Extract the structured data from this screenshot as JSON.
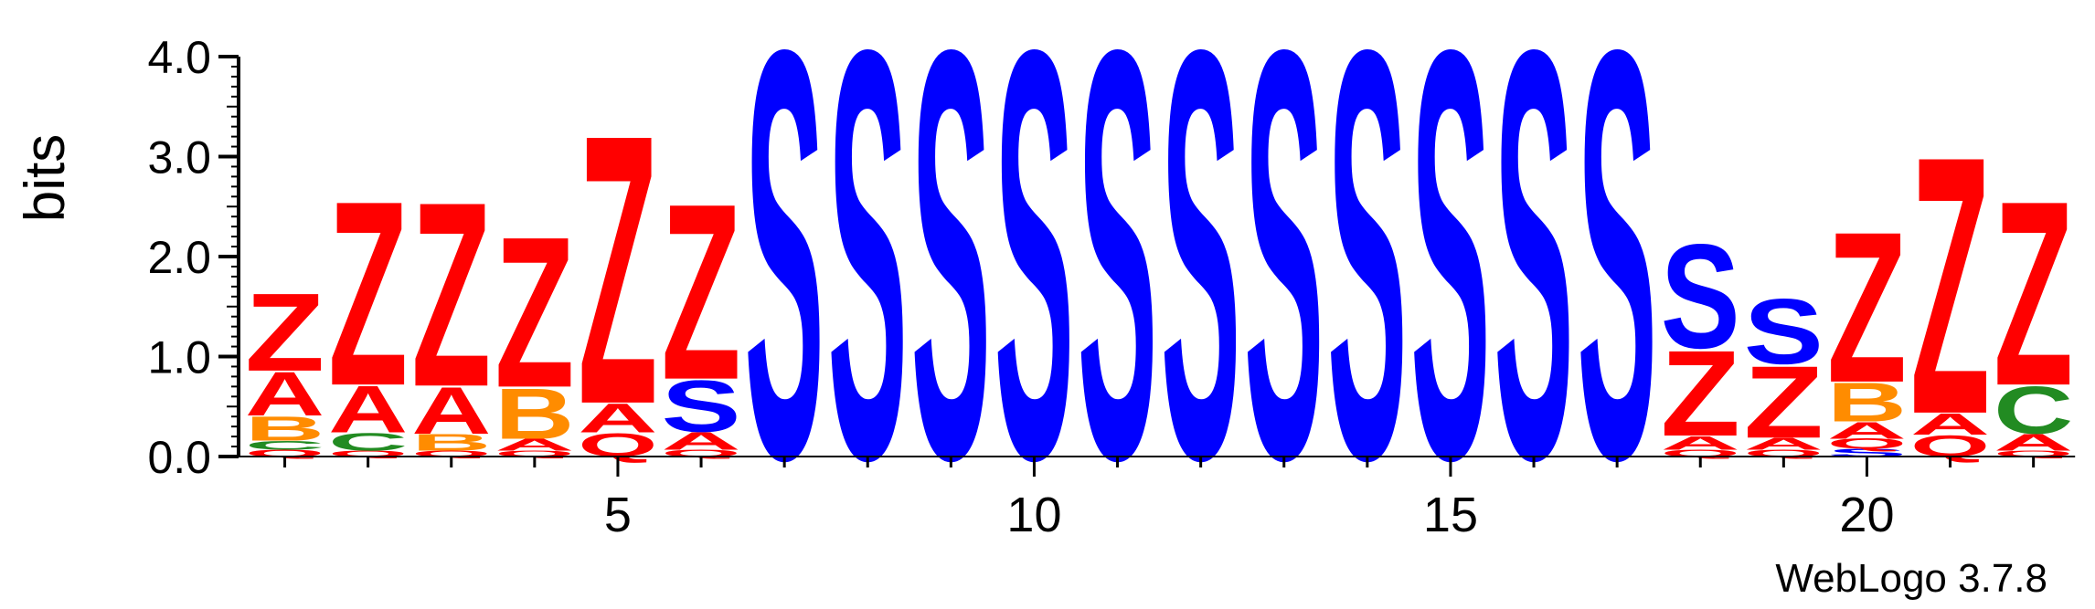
{
  "chart_data": {
    "type": "sequence-logo",
    "ylabel": "bits",
    "ylim": [
      0,
      4.0
    ],
    "y_ticks": [
      "0.0",
      "1.0",
      "2.0",
      "3.0",
      "4.0"
    ],
    "x_ticks": [
      5,
      10,
      15,
      20
    ],
    "positions": 22,
    "credit": "WebLogo 3.7.8",
    "colors": {
      "Z": "#ff0000",
      "A": "#ff0000",
      "Q": "#ff0000",
      "S": "#0000ff",
      "B": "#ff8c00",
      "C": "#228b22"
    },
    "columns": [
      [
        [
          "Q",
          0.07
        ],
        [
          "C",
          0.09
        ],
        [
          "B",
          0.25
        ],
        [
          "A",
          0.45
        ],
        [
          "Z",
          0.8
        ]
      ],
      [
        [
          "Q",
          0.06
        ],
        [
          "C",
          0.18
        ],
        [
          "A",
          0.48
        ],
        [
          "Z",
          1.9
        ]
      ],
      [
        [
          "Q",
          0.06
        ],
        [
          "B",
          0.17
        ],
        [
          "A",
          0.48
        ],
        [
          "Z",
          1.9
        ]
      ],
      [
        [
          "Q",
          0.06
        ],
        [
          "A",
          0.12
        ],
        [
          "B",
          0.52
        ],
        [
          "Z",
          1.55
        ]
      ],
      [
        [
          "Q",
          0.24
        ],
        [
          "A",
          0.3
        ],
        [
          "Z",
          2.77
        ]
      ],
      [
        [
          "Q",
          0.07
        ],
        [
          "A",
          0.18
        ],
        [
          "S",
          0.53
        ],
        [
          "Z",
          1.81
        ]
      ],
      [
        [
          "S",
          4.2
        ]
      ],
      [
        [
          "S",
          4.2
        ]
      ],
      [
        [
          "S",
          4.2
        ]
      ],
      [
        [
          "S",
          4.2
        ]
      ],
      [
        [
          "S",
          4.2
        ]
      ],
      [
        [
          "S",
          4.2
        ]
      ],
      [
        [
          "S",
          4.2
        ]
      ],
      [
        [
          "S",
          4.2
        ]
      ],
      [
        [
          "S",
          4.2
        ]
      ],
      [
        [
          "S",
          4.2
        ]
      ],
      [
        [
          "S",
          4.2
        ]
      ],
      [
        [
          "Q",
          0.07
        ],
        [
          "A",
          0.14
        ],
        [
          "Z",
          0.88
        ],
        [
          "S",
          1.07
        ]
      ],
      [
        [
          "Q",
          0.07
        ],
        [
          "A",
          0.12
        ],
        [
          "Z",
          0.74
        ],
        [
          "S",
          0.67
        ]
      ],
      [
        [
          "S",
          0.08
        ],
        [
          "Q",
          0.1
        ],
        [
          "A",
          0.17
        ],
        [
          "B",
          0.4
        ],
        [
          "Z",
          1.55
        ]
      ],
      [
        [
          "Q",
          0.22
        ],
        [
          "A",
          0.22
        ],
        [
          "Z",
          2.65
        ]
      ],
      [
        [
          "Q",
          0.06
        ],
        [
          "A",
          0.17
        ],
        [
          "C",
          0.49
        ],
        [
          "Z",
          1.9
        ]
      ]
    ]
  }
}
